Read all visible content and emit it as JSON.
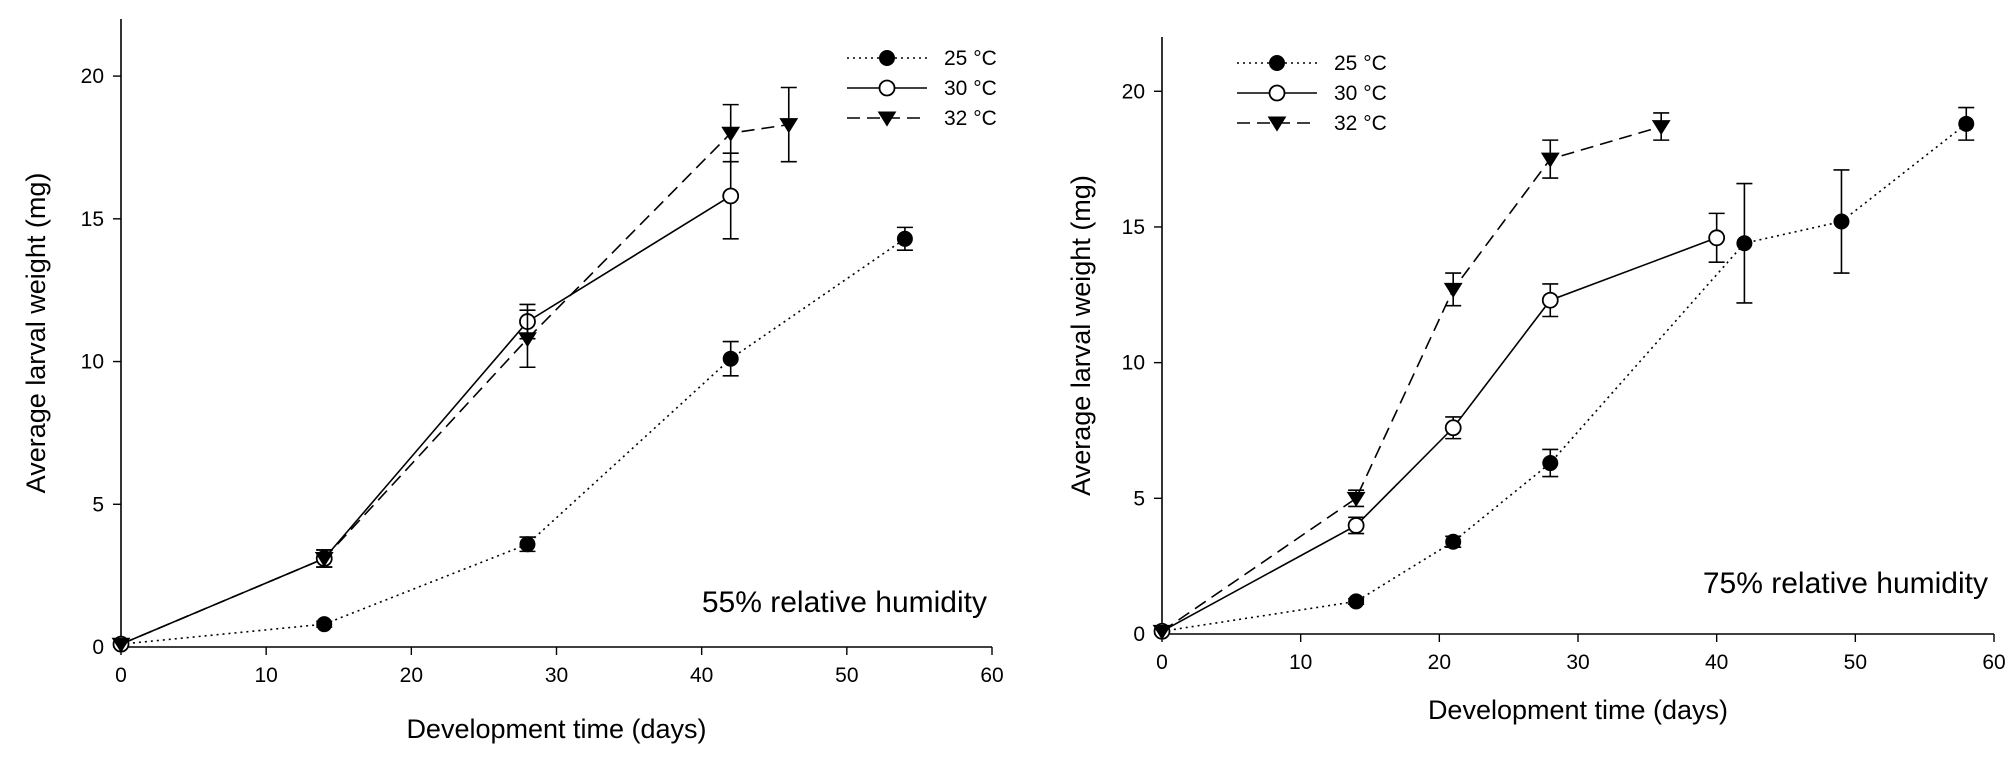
{
  "chart_data": [
    {
      "type": "line",
      "title": "",
      "annotation": "55% relative humidity",
      "xlabel": "Development time (days)",
      "ylabel": "Average larval weight (mg)",
      "xlim": [
        0,
        60
      ],
      "ylim": [
        0,
        22
      ],
      "xticks": [
        0,
        10,
        20,
        30,
        40,
        50,
        60
      ],
      "yticks": [
        0,
        5,
        10,
        15,
        20
      ],
      "legend_position": "top-right",
      "series": [
        {
          "name": "25 °C",
          "line_style": "dotted",
          "marker": "filled-circle",
          "points": [
            {
              "x": 0,
              "y": 0.1,
              "err": 0
            },
            {
              "x": 14,
              "y": 0.8,
              "err": 0.1
            },
            {
              "x": 28,
              "y": 3.6,
              "err": 0.25
            },
            {
              "x": 42,
              "y": 10.1,
              "err": 0.6
            },
            {
              "x": 54,
              "y": 14.3,
              "err": 0.4
            }
          ]
        },
        {
          "name": "30 °C",
          "line_style": "solid",
          "marker": "open-circle",
          "points": [
            {
              "x": 0,
              "y": 0.1,
              "err": 0
            },
            {
              "x": 14,
              "y": 3.1,
              "err": 0.3
            },
            {
              "x": 28,
              "y": 11.4,
              "err": 0.6
            },
            {
              "x": 42,
              "y": 15.8,
              "err": 1.5
            }
          ]
        },
        {
          "name": "32 °C",
          "line_style": "dashed",
          "marker": "filled-triangle-down",
          "points": [
            {
              "x": 0,
              "y": 0.1,
              "err": 0
            },
            {
              "x": 14,
              "y": 3.1,
              "err": 0.3
            },
            {
              "x": 28,
              "y": 10.8,
              "err": 1.0
            },
            {
              "x": 42,
              "y": 18.0,
              "err": 1.0
            },
            {
              "x": 46,
              "y": 18.3,
              "err": 1.3
            }
          ]
        }
      ]
    },
    {
      "type": "line",
      "title": "",
      "annotation": "75% relative humidity",
      "xlabel": "Development time (days)",
      "ylabel": "Average larval weight (mg)",
      "xlim": [
        0,
        60
      ],
      "ylim": [
        0,
        22
      ],
      "xticks": [
        0,
        10,
        20,
        30,
        40,
        50,
        60
      ],
      "yticks": [
        0,
        5,
        10,
        15,
        20
      ],
      "legend_position": "top-left",
      "series": [
        {
          "name": "25 °C",
          "line_style": "dotted",
          "marker": "filled-circle",
          "points": [
            {
              "x": 0,
              "y": 0.1,
              "err": 0
            },
            {
              "x": 14,
              "y": 1.2,
              "err": 0.1
            },
            {
              "x": 21,
              "y": 3.4,
              "err": 0.2
            },
            {
              "x": 28,
              "y": 6.3,
              "err": 0.5
            },
            {
              "x": 42,
              "y": 14.4,
              "err": 2.2
            },
            {
              "x": 49,
              "y": 15.2,
              "err": 1.9
            },
            {
              "x": 58,
              "y": 18.8,
              "err": 0.6
            }
          ]
        },
        {
          "name": "30 °C",
          "line_style": "solid",
          "marker": "open-circle",
          "points": [
            {
              "x": 0,
              "y": 0.1,
              "err": 0
            },
            {
              "x": 14,
              "y": 4.0,
              "err": 0.3
            },
            {
              "x": 21,
              "y": 7.6,
              "err": 0.4
            },
            {
              "x": 28,
              "y": 12.3,
              "err": 0.6
            },
            {
              "x": 40,
              "y": 14.6,
              "err": 0.9
            }
          ]
        },
        {
          "name": "32 °C",
          "line_style": "dashed",
          "marker": "filled-triangle-down",
          "points": [
            {
              "x": 0,
              "y": 0.1,
              "err": 0
            },
            {
              "x": 14,
              "y": 5.0,
              "err": 0.3
            },
            {
              "x": 21,
              "y": 12.7,
              "err": 0.6
            },
            {
              "x": 28,
              "y": 17.5,
              "err": 0.7
            },
            {
              "x": 36,
              "y": 18.7,
              "err": 0.5
            }
          ]
        }
      ]
    }
  ]
}
